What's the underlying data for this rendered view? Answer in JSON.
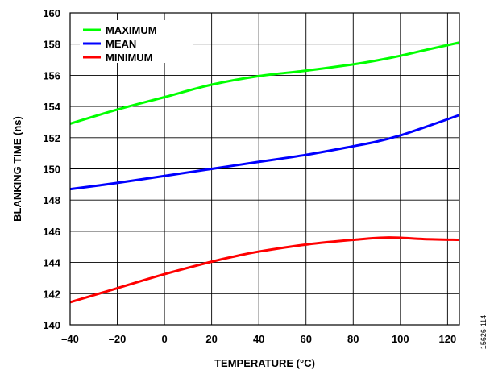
{
  "figure_id": "15626-114",
  "chart_data": {
    "type": "line",
    "xlabel": "TEMPERATURE (°C)",
    "ylabel": "BLANKING TIME (ns)",
    "xlim": [
      -40,
      125
    ],
    "ylim": [
      140,
      160
    ],
    "x_ticks": [
      -40,
      -20,
      0,
      20,
      40,
      60,
      80,
      100,
      120
    ],
    "x_tick_labels": [
      "–40",
      "–20",
      "0",
      "20",
      "40",
      "60",
      "80",
      "100",
      "120"
    ],
    "y_ticks": [
      140,
      142,
      144,
      146,
      148,
      150,
      152,
      154,
      156,
      158,
      160
    ],
    "y_tick_labels": [
      "140",
      "142",
      "144",
      "146",
      "148",
      "150",
      "152",
      "154",
      "156",
      "158",
      "160"
    ],
    "grid": true,
    "legend_position": "top-left",
    "series": [
      {
        "name": "MAXIMUM",
        "color": "#00ff00",
        "x": [
          -40,
          -20,
          0,
          20,
          40,
          60,
          80,
          90,
          100,
          110,
          125
        ],
        "y": [
          152.9,
          153.8,
          154.6,
          155.4,
          155.95,
          156.3,
          156.7,
          156.95,
          157.25,
          157.6,
          158.1
        ]
      },
      {
        "name": "MEAN",
        "color": "#0000ff",
        "x": [
          -40,
          -20,
          0,
          20,
          40,
          60,
          80,
          90,
          100,
          110,
          125
        ],
        "y": [
          148.7,
          149.1,
          149.55,
          150.0,
          150.45,
          150.9,
          151.45,
          151.75,
          152.15,
          152.65,
          153.45
        ]
      },
      {
        "name": "MINIMUM",
        "color": "#ff0000",
        "x": [
          -40,
          -20,
          0,
          20,
          30,
          40,
          60,
          80,
          95,
          110,
          125
        ],
        "y": [
          141.45,
          142.35,
          143.25,
          144.05,
          144.4,
          144.7,
          145.15,
          145.45,
          145.6,
          145.5,
          145.45
        ]
      }
    ]
  }
}
